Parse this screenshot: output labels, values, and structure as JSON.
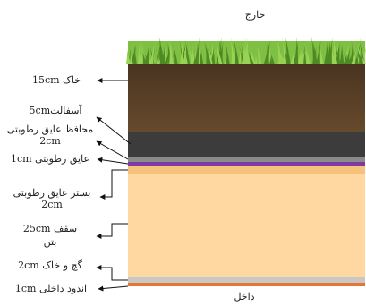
{
  "labels": {
    "outside": "خارج",
    "inside": "داخل"
  },
  "layers": [
    {
      "line1": "خاک 15cm",
      "line2": "",
      "color": "#5b4328"
    },
    {
      "line1": "آسفالت5cm",
      "line2": "",
      "color": "#3c3c3c"
    },
    {
      "line1": "محافظ عایق رطوبتی",
      "line2": "2cm",
      "color": "#8a8a8a"
    },
    {
      "line1": "عایق رطوبتی 1cm",
      "line2": "",
      "color": "#7d3aa3"
    },
    {
      "line1": "بستر عایق رطوبتی",
      "line2": "2cm",
      "color": "#f7c98a"
    },
    {
      "line1": "سقف 25cm",
      "line2": "بتن",
      "color": "#fed8a0"
    },
    {
      "line1": "گچ و خاک 2cm",
      "line2": "",
      "color": "#c8c8c8"
    },
    {
      "line1": "اندود داخلی 1cm",
      "line2": "",
      "color": "#e8742f"
    }
  ],
  "colors": {
    "grass_dark": "#4e8a24",
    "grass_light": "#9ad256",
    "leader": "#111111"
  }
}
